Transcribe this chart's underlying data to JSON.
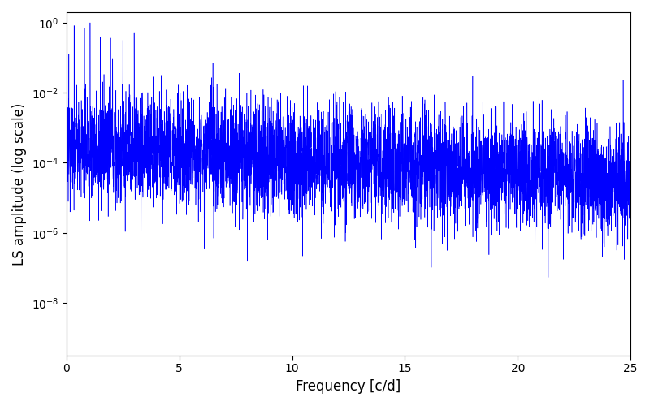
{
  "xlabel": "Frequency [c/d]",
  "ylabel": "LS amplitude (log scale)",
  "line_color": "blue",
  "xlim": [
    0,
    25
  ],
  "ylim_log": [
    -9.5,
    0.3
  ],
  "xticks": [
    0,
    5,
    10,
    15,
    20,
    25
  ],
  "background_color": "#ffffff",
  "figsize": [
    8.0,
    5.0
  ],
  "dpi": 100,
  "seed": 12345,
  "n_points": 5000,
  "freq_max": 25.0,
  "line_width": 0.4
}
